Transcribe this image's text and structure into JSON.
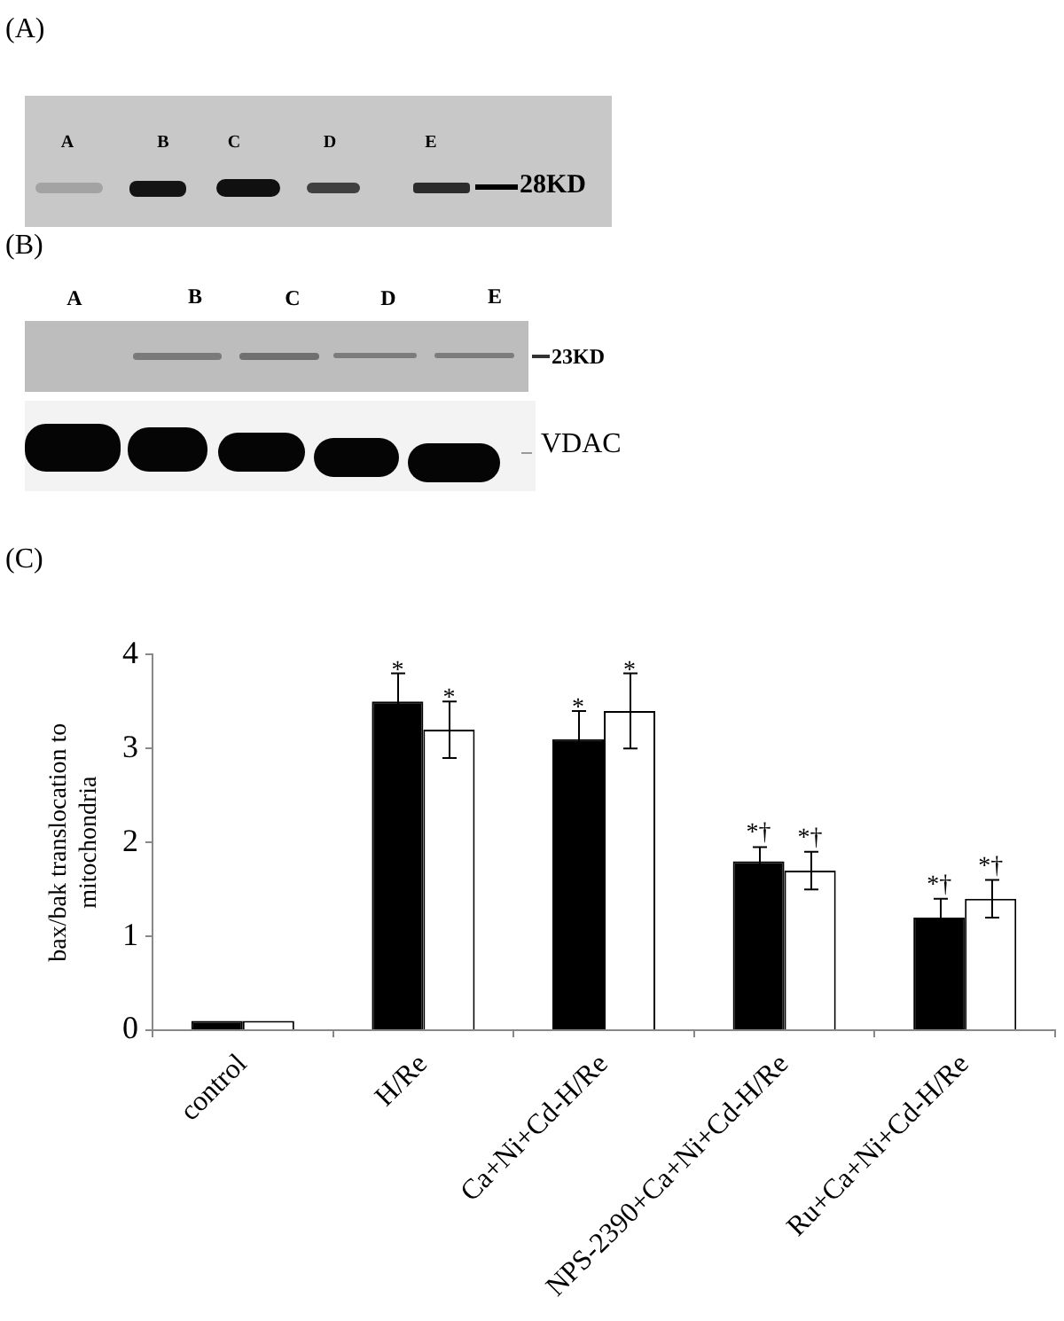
{
  "chart_data": [
    {
      "type": "other",
      "title": "(A)",
      "annotations": [
        "A",
        "B",
        "C",
        "D",
        "E",
        "28KD"
      ]
    },
    {
      "type": "other",
      "title": "(B)",
      "annotations": [
        "A",
        "B",
        "C",
        "D",
        "E",
        "23KD",
        "VDAC"
      ]
    },
    {
      "type": "bar",
      "title": "(C)",
      "ylabel": "bax/bak translocation to mitochondria",
      "categories": [
        "control",
        "H/Re",
        "Ca+Ni+Cd-H/Re",
        "NPS-2390+Ca+Ni+Cd-H/Re",
        "Ru+Ca+Ni+Cd-H/Re"
      ],
      "series": [
        {
          "color": "#000000",
          "values": [
            0.1,
            3.5,
            3.1,
            1.8,
            1.2
          ],
          "errors": [
            null,
            0.3,
            0.3,
            0.15,
            0.2
          ],
          "value_labels": [
            null,
            "*",
            "*",
            "*†",
            "*†"
          ]
        },
        {
          "color": "#ffffff",
          "values": [
            0.1,
            3.2,
            3.4,
            1.7,
            1.4
          ],
          "errors": [
            null,
            0.3,
            0.4,
            0.2,
            0.2
          ],
          "value_labels": [
            null,
            "*",
            "*",
            "*†",
            "*†"
          ]
        }
      ],
      "ylim": [
        0,
        4
      ],
      "yticks": [
        0,
        1,
        2,
        3,
        4
      ]
    }
  ]
}
